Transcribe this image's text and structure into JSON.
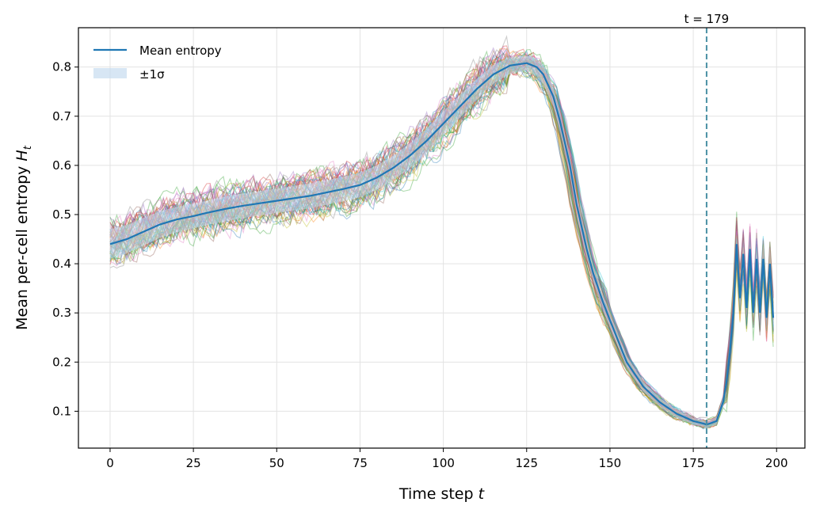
{
  "chart_data": {
    "type": "line",
    "xlabel": "Time step t",
    "ylabel": "Mean per-cell entropy H_t",
    "xlim": [
      -9.5,
      208.5
    ],
    "ylim": [
      0.025,
      0.88
    ],
    "xticks": [
      0,
      25,
      50,
      75,
      100,
      125,
      150,
      175,
      200
    ],
    "yticks": [
      0.1,
      0.2,
      0.3,
      0.4,
      0.5,
      0.6,
      0.7,
      0.8
    ],
    "ytick_labels": [
      "0.1",
      "0.2",
      "0.3",
      "0.4",
      "0.5",
      "0.6",
      "0.7",
      "0.8"
    ],
    "grid": true,
    "legend": {
      "position": "top-left",
      "entries": [
        {
          "label": "Mean entropy",
          "kind": "line",
          "color": "#1f77b4"
        },
        {
          "label": "±1σ",
          "kind": "band",
          "color": "#c6dbef"
        }
      ]
    },
    "annotation": {
      "label": "t = 179",
      "x": 179,
      "style": "dashed",
      "color": "#4a90a4"
    },
    "ensemble": {
      "num_runs": 60,
      "description": "individual runs, thin semi-transparent colored lines"
    },
    "mean_series": {
      "name": "Mean entropy",
      "x": [
        0,
        5,
        10,
        15,
        20,
        25,
        30,
        35,
        40,
        45,
        50,
        55,
        60,
        65,
        70,
        75,
        80,
        85,
        90,
        95,
        100,
        105,
        110,
        115,
        120,
        125,
        128,
        130,
        133,
        135,
        138,
        140,
        143,
        145,
        148,
        150,
        155,
        160,
        165,
        170,
        175,
        178,
        179,
        180,
        182,
        184,
        185,
        186,
        187,
        188,
        189,
        190,
        191,
        192,
        193,
        194,
        195,
        196,
        197,
        198,
        199
      ],
      "y": [
        0.44,
        0.45,
        0.465,
        0.48,
        0.49,
        0.497,
        0.505,
        0.512,
        0.518,
        0.523,
        0.528,
        0.533,
        0.538,
        0.545,
        0.552,
        0.56,
        0.575,
        0.595,
        0.62,
        0.65,
        0.685,
        0.72,
        0.755,
        0.785,
        0.803,
        0.808,
        0.8,
        0.785,
        0.74,
        0.69,
        0.6,
        0.52,
        0.43,
        0.38,
        0.32,
        0.285,
        0.2,
        0.15,
        0.118,
        0.095,
        0.08,
        0.075,
        0.073,
        0.075,
        0.08,
        0.12,
        0.16,
        0.22,
        0.3,
        0.44,
        0.33,
        0.42,
        0.31,
        0.43,
        0.3,
        0.41,
        0.3,
        0.41,
        0.29,
        0.4,
        0.29
      ]
    },
    "std_series": {
      "name": "±1σ",
      "x": [
        0,
        25,
        50,
        75,
        100,
        125,
        130,
        140,
        150,
        160,
        170,
        179,
        185,
        190,
        199
      ],
      "sd": [
        0.03,
        0.025,
        0.025,
        0.025,
        0.025,
        0.015,
        0.02,
        0.02,
        0.015,
        0.01,
        0.008,
        0.006,
        0.01,
        0.03,
        0.03
      ]
    }
  }
}
